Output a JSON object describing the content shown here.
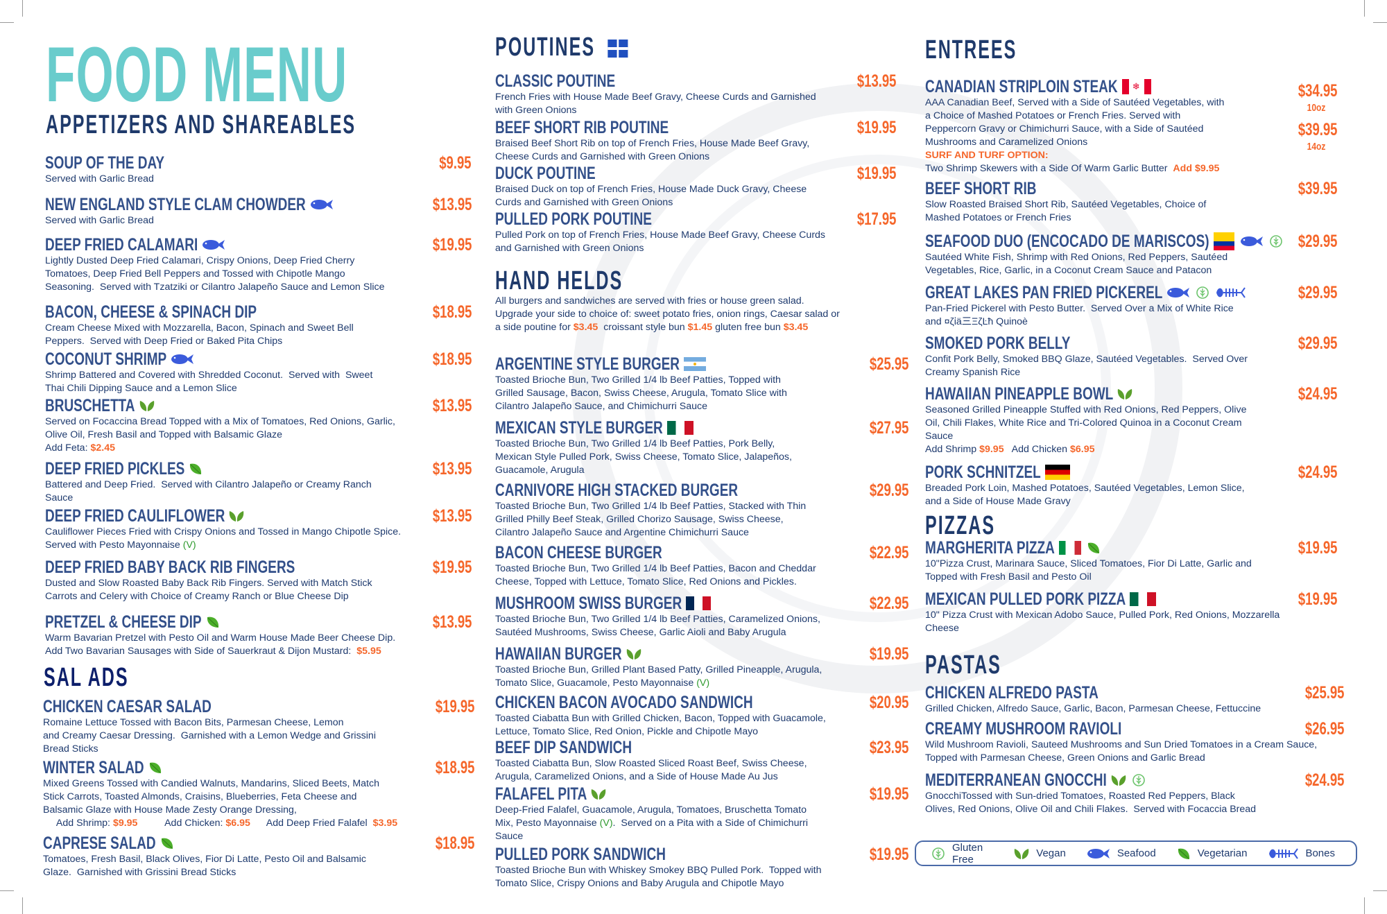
{
  "title": "FOOD MENU",
  "colors": {
    "title": "#69cccc",
    "heading": "#1f3a6b",
    "item_name": "#33508a",
    "price": "#f5662a",
    "seafood": "#3b5bdb",
    "vegan": "#5aa02c"
  },
  "sections": {
    "appetizers": {
      "title": "APPETIZERS AND SHAREABLES",
      "items": [
        {
          "name": "SOUP OF THE DAY",
          "price": "$9.95",
          "icons": [],
          "desc": [
            {
              "t": "Served with Garlic Bread"
            }
          ]
        },
        {
          "name": "NEW ENGLAND STYLE CLAM CHOWDER",
          "price": "$13.95",
          "icons": [
            "seafood"
          ],
          "desc": [
            {
              "t": "Served with Garlic Bread"
            }
          ]
        },
        {
          "name": "DEEP FRIED CALAMARI",
          "price": "$19.95",
          "icons": [
            "seafood"
          ],
          "desc": [
            {
              "t": "Lightly Dusted Deep Fried Calamari, Crispy Onions, Deep Fried Cherry\nTomatoes, Deep Fried Bell Peppers and Tossed with Chipotle Mango\nSeasoning.  Served with Tzatziki or Cilantro Jalapeño Sauce and Lemon Slice"
            }
          ]
        },
        {
          "name": "BACON, CHEESE & SPINACH DIP",
          "price": "$18.95",
          "icons": [],
          "desc": [
            {
              "t": "Cream Cheese Mixed with Mozzarella, Bacon, Spinach and Sweet Bell\nPeppers.  Served with Deep Fried or Baked Pita Chips"
            }
          ]
        },
        {
          "name": "COCONUT SHRIMP",
          "price": "$18.95",
          "icons": [
            "seafood"
          ],
          "desc": [
            {
              "t": "Shrimp Battered and Covered with Shredded Coconut.  Served with  Sweet\nThai Chili Dipping Sauce and a Lemon Slice"
            }
          ]
        },
        {
          "name": "BRUSCHETTA",
          "price": "$13.95",
          "icons": [
            "vegan"
          ],
          "desc": [
            {
              "t": "Served on Focaccina Bread Topped with a Mix of Tomatoes, Red Onions, Garlic,\nOlive Oil, Fresh Basil and Topped with Balsamic Glaze\nAdd Feta: "
            },
            {
              "t": "$2.45",
              "c": "price"
            }
          ]
        },
        {
          "name": "DEEP FRIED PICKLES",
          "price": "$13.95",
          "icons": [
            "vegetarian"
          ],
          "desc": [
            {
              "t": "Battered and Deep Fried.  Served with Cilantro Jalapeño or Creamy Ranch\nSauce"
            }
          ]
        },
        {
          "name": "DEEP FRIED CAULIFLOWER",
          "price": "$13.95",
          "icons": [
            "vegan"
          ],
          "desc": [
            {
              "t": "Cauliflower Pieces Fried with Crispy Onions and Tossed in Mango Chipotle Spice.\nServed with Pesto Mayonnaise "
            },
            {
              "t": "(V)",
              "c": "veg"
            }
          ]
        },
        {
          "name": "DEEP FRIED BABY BACK RIB FINGERS",
          "price": "$19.95",
          "icons": [],
          "desc": [
            {
              "t": "Dusted and Slow Roasted Baby Back Rib Fingers. Served with Match Stick\nCarrots and Celery with Choice of Creamy Ranch or Blue Cheese Dip"
            }
          ]
        },
        {
          "name": "PRETZEL & CHEESE DIP",
          "price": "$13.95",
          "icons": [
            "vegetarian"
          ],
          "desc": [
            {
              "t": "Warm Bavarian Pretzel with Pesto Oil and Warm House Made Beer Cheese Dip.\nAdd Two Bavarian Sausages with Side of Sauerkraut & Dijon Mustard:  "
            },
            {
              "t": "$5.95",
              "c": "price"
            }
          ]
        }
      ]
    },
    "salads": {
      "title": "SAL ADS",
      "items": [
        {
          "name": "CHICKEN CAESAR SALAD",
          "price": "$19.95",
          "icons": [],
          "desc": [
            {
              "t": "Romaine Lettuce Tossed with Bacon Bits, Parmesan Cheese, Lemon\nand Creamy Caesar Dressing.  Garnished with a Lemon Wedge and Grissini\nBread Sticks"
            }
          ]
        },
        {
          "name": "WINTER SALAD",
          "price": "$18.95",
          "icons": [
            "vegetarian"
          ],
          "desc": [
            {
              "t": "Mixed Greens Tossed with Candied Walnuts, Mandarins, Sliced Beets, Match\nStick Carrots, Toasted Almonds, Craisins, Blueberries, Feta Cheese and\nBalsamic Glaze with House Made Zesty Orange Dressing,\n     Add Shrimp: "
            },
            {
              "t": "$9.95",
              "c": "price"
            },
            {
              "t": "          Add Chicken: "
            },
            {
              "t": "$6.95",
              "c": "price"
            },
            {
              "t": "      Add Deep Fried Falafel  "
            },
            {
              "t": "$3.95",
              "c": "price"
            }
          ]
        },
        {
          "name": "CAPRESE SALAD",
          "price": "$18.95",
          "icons": [
            "vegetarian"
          ],
          "desc": [
            {
              "t": "Tomatoes, Fresh Basil, Black Olives, Fior Di Latte, Pesto Oil and Balsamic\nGlaze.  Garnished with Grissini Bread Sticks"
            }
          ]
        }
      ]
    },
    "poutines": {
      "title": "POUTINES",
      "title_icon": "quebec-flag",
      "items": [
        {
          "name": "CLASSIC POUTINE",
          "price": "$13.95",
          "icons": [],
          "desc": [
            {
              "t": "French Fries with House Made Beef Gravy, Cheese Curds and Garnished\nwith Green Onions"
            }
          ]
        },
        {
          "name": "BEEF SHORT RIB POUTINE",
          "price": "$19.95",
          "icons": [],
          "desc": [
            {
              "t": "Braised Beef Short Rib on top of French Fries, House Made Beef Gravy,\nCheese Curds and Garnished with Green Onions"
            }
          ]
        },
        {
          "name": "DUCK POUTINE",
          "price": "$19.95",
          "icons": [],
          "desc": [
            {
              "t": "Braised Duck on top of French Fries, House Made Duck Gravy, Cheese\nCurds and Garnished with Green Onions"
            }
          ]
        },
        {
          "name": "PULLED PORK POUTINE",
          "price": "$17.95",
          "icons": [],
          "desc": [
            {
              "t": "Pulled Pork on top of French Fries, House Made Beef Gravy, Cheese Curds\nand Garnished with Green Onions"
            }
          ]
        }
      ]
    },
    "handhelds": {
      "title": "HAND HELDS",
      "note": [
        {
          "t": "All burgers and sandwiches are served with fries or house green salad.\nUpgrade your side to choice of: sweet potato fries, onion rings, Caesar salad or\na side poutine for "
        },
        {
          "t": "$3.45",
          "c": "price"
        },
        {
          "t": "  croissant style bun "
        },
        {
          "t": "$1.45",
          "c": "price"
        },
        {
          "t": " gluten free bun "
        },
        {
          "t": "$3.45",
          "c": "price"
        }
      ],
      "items": [
        {
          "name": "ARGENTINE STYLE BURGER",
          "price": "$25.95",
          "icons": [
            "argentina-flag"
          ],
          "desc": [
            {
              "t": "Toasted Brioche Bun, Two Grilled 1/4 lb Beef Patties, Topped with\nGrilled Sausage, Bacon, Swiss Cheese, Arugula, Tomato Slice with\nCilantro Jalapeño Sauce, and Chimichurri Sauce"
            }
          ]
        },
        {
          "name": "MEXICAN STYLE BURGER",
          "price": "$27.95",
          "icons": [
            "mexico-flag"
          ],
          "desc": [
            {
              "t": "Toasted Brioche Bun, Two Grilled 1/4 lb Beef Patties, Pork Belly,\nMexican Style Pulled Pork, Swiss Cheese, Tomato Slice, Jalapeños,\nGuacamole, Arugula"
            }
          ]
        },
        {
          "name": "CARNIVORE HIGH STACKED BURGER",
          "price": "$29.95",
          "icons": [],
          "desc": [
            {
              "t": "Toasted Brioche Bun, Two Grilled 1/4 lb Beef Patties, Stacked with Thin\nGrilled Philly Beef Steak, Grilled Chorizo Sausage, Swiss Cheese,\nCilantro Jalapeño Sauce and Argentine Chimichurri Sauce"
            }
          ]
        },
        {
          "name": "BACON CHEESE BURGER",
          "price": "$22.95",
          "icons": [],
          "desc": [
            {
              "t": "Toasted Brioche Bun, Two Grilled 1/4 lb Beef Patties, Bacon and Cheddar\nCheese, Topped with Lettuce, Tomato Slice, Red Onions and Pickles."
            }
          ]
        },
        {
          "name": "MUSHROOM SWISS BURGER",
          "price": "$22.95",
          "icons": [
            "france-flag"
          ],
          "desc": [
            {
              "t": "Toasted Brioche Bun, Two Grilled 1/4 lb Beef Patties, Caramelized Onions,\nSautéed Mushrooms, Swiss Cheese, Garlic Aioli and Baby Arugula"
            }
          ]
        },
        {
          "name": "HAWAIIAN BURGER",
          "price": "$19.95",
          "icons": [
            "vegan"
          ],
          "desc": [
            {
              "t": "Toasted Brioche Bun, Grilled Plant Based Patty, Grilled Pineapple, Arugula,\nTomato Slice, Guacamole, Pesto Mayonnaise "
            },
            {
              "t": "(V)",
              "c": "veg"
            }
          ]
        },
        {
          "name": "CHICKEN BACON AVOCADO SANDWICH",
          "price": "$20.95",
          "icons": [],
          "desc": [
            {
              "t": "Toasted Ciabatta Bun with Grilled Chicken, Bacon, Topped with Guacamole,\nLettuce, Tomato Slice, Red Onion, Pickle and Chipotle Mayo"
            }
          ]
        },
        {
          "name": "BEEF DIP SANDWICH",
          "price": "$23.95",
          "icons": [],
          "desc": [
            {
              "t": "Toasted Ciabatta Bun, Slow Roasted Sliced Roast Beef, Swiss Cheese,\nArugula, Caramelized Onions, and a Side of House Made Au Jus"
            }
          ]
        },
        {
          "name": "FALAFEL PITA",
          "price": "$19.95",
          "icons": [
            "vegan"
          ],
          "desc": [
            {
              "t": "Deep-Fried Falafel, Guacamole, Arugula, Tomatoes, Bruschetta Tomato\nMix, Pesto Mayonnaise "
            },
            {
              "t": "(V)",
              "c": "veg"
            },
            {
              "t": ".  Served on a Pita with a Side of Chimichurri\nSauce"
            }
          ]
        },
        {
          "name": "PULLED PORK SANDWICH",
          "price": "$19.95",
          "icons": [],
          "desc": [
            {
              "t": "Toasted Brioche Bun with Whiskey Smokey BBQ Pulled Pork.  Topped with\nTomato Slice, Crispy Onions and Baby Arugula and Chipotle Mayo"
            }
          ]
        }
      ]
    },
    "entrees": {
      "title": "ENTREES",
      "items": [
        {
          "name": "CANADIAN STRIPLOIN STEAK",
          "icons": [
            "canada-flag"
          ],
          "prices": [
            {
              "price": "$34.95",
              "size": "10oz"
            },
            {
              "price": "$39.95",
              "size": "14oz"
            }
          ],
          "desc": [
            {
              "t": "AAA Canadian Beef, Served with a Side of Sautéed Vegetables, with\na Choice of Mashed Potatoes or French Fries. Served with\nPeppercorn Gravy or Chimichurri Sauce, with a Side of Sautéed\nMushrooms and Caramelized Onions\n"
            },
            {
              "t": "SURF AND TURF OPTION:",
              "c": "price"
            },
            {
              "t": "\nTwo Shrimp Skewers with a Side Of Warm Garlic Butter  "
            },
            {
              "t": "Add $9.95",
              "c": "price"
            }
          ]
        },
        {
          "name": "BEEF SHORT RIB",
          "price": "$39.95",
          "icons": [],
          "desc": [
            {
              "t": "Slow Roasted Braised Short Rib, Sautéed Vegetables, Choice of\nMashed Potatoes or French Fries"
            }
          ]
        },
        {
          "name": "SEAFOOD DUO (ENCOCADO DE MARISCOS)",
          "price": "$29.95",
          "icons": [
            "ecuador-flag",
            "seafood",
            "gluten-free"
          ],
          "desc": [
            {
              "t": "Sautéed White Fish, Shrimp with Red Onions, Red Peppers, Sautéed\nVegetables, Rice, Garlic, in a Coconut Cream Sauce and Patacon"
            }
          ]
        },
        {
          "name": "GREAT LAKES PAN FRIED PICKEREL",
          "price": "$29.95",
          "icons": [
            "seafood",
            "gluten-free",
            "bones"
          ],
          "desc": [
            {
              "t": "Pan-Fried Pickerel with Pesto Butter.  Served Over a Mix of White Rice\nand ¤ζἰä三ΞζĿħ Quinoè"
            }
          ]
        },
        {
          "name": "SMOKED PORK BELLY",
          "price": "$29.95",
          "icons": [],
          "desc": [
            {
              "t": "Confit Pork Belly, Smoked BBQ Glaze, Sautéed Vegetables.  Served Over\nCreamy Spanish Rice"
            }
          ]
        },
        {
          "name": "HAWAIIAN PINEAPPLE BOWL",
          "price": "$24.95",
          "icons": [
            "vegan"
          ],
          "desc": [
            {
              "t": "Seasoned Grilled Pineapple Stuffed with Red Onions, Red Peppers, Olive\nOil, Chili Flakes, White Rice and Tri-Colored Quinoa in a Coconut Cream\nSauce\nAdd Shrimp "
            },
            {
              "t": "$9.95",
              "c": "price"
            },
            {
              "t": "   Add Chicken "
            },
            {
              "t": "$6.95",
              "c": "price"
            }
          ]
        },
        {
          "name": "PORK SCHNITZEL",
          "price": "$24.95",
          "icons": [
            "germany-flag"
          ],
          "desc": [
            {
              "t": "Breaded Pork Loin, Mashed Potatoes, Sautéed Vegetables, Lemon Slice,\nand a Side of House Made Gravy"
            }
          ]
        }
      ]
    },
    "pizzas": {
      "title": "PIZZAS",
      "items": [
        {
          "name": "MARGHERITA PIZZA",
          "price": "$19.95",
          "icons": [
            "italy-flag",
            "vegetarian"
          ],
          "desc": [
            {
              "t": "10\"Pizza Crust, Marinara Sauce, Sliced Tomatoes, Fior Di Latte, Garlic and\nTopped with Fresh Basil and Pesto Oil"
            }
          ]
        },
        {
          "name": "MEXICAN PULLED PORK PIZZA",
          "price": "$19.95",
          "icons": [
            "mexico-flag"
          ],
          "desc": [
            {
              "t": "10\" Pizza Crust with Mexican Adobo Sauce, Pulled Pork, Red Onions, Mozzarella\nCheese"
            }
          ]
        }
      ]
    },
    "pastas": {
      "title": "PASTAS",
      "items": [
        {
          "name": "CHICKEN ALFREDO PASTA",
          "price": "$25.95",
          "icons": [],
          "desc": [
            {
              "t": "Grilled Chicken, Alfredo Sauce, Garlic, Bacon, Parmesan Cheese, Fettuccine"
            }
          ]
        },
        {
          "name": "CREAMY MUSHROOM RAVIOLI",
          "price": "$26.95",
          "icons": [],
          "desc": [
            {
              "t": "Wild Mushroom Ravioli, Sauteed Mushrooms and Sun Dried Tomatoes in a Cream Sauce,\nTopped with Parmesan Cheese, Green Onions and Garlic Bread"
            }
          ]
        },
        {
          "name": "MEDITERRANEAN GNOCCHI",
          "price": "$24.95",
          "icons": [
            "vegan",
            "gluten-free"
          ],
          "desc": [
            {
              "t": "GnocchiTossed with Sun-dried Tomatoes, Roasted Red Peppers, Black\nOlives, Red Onions, Olive Oil and Chili Flakes.  Served with Focaccia Bread"
            }
          ]
        }
      ]
    }
  },
  "legend": [
    {
      "icon": "gluten-free",
      "label": "Gluten Free"
    },
    {
      "icon": "vegan",
      "label": "Vegan"
    },
    {
      "icon": "seafood",
      "label": "Seafood"
    },
    {
      "icon": "vegetarian",
      "label": "Vegetarian"
    },
    {
      "icon": "bones",
      "label": "Bones"
    }
  ]
}
